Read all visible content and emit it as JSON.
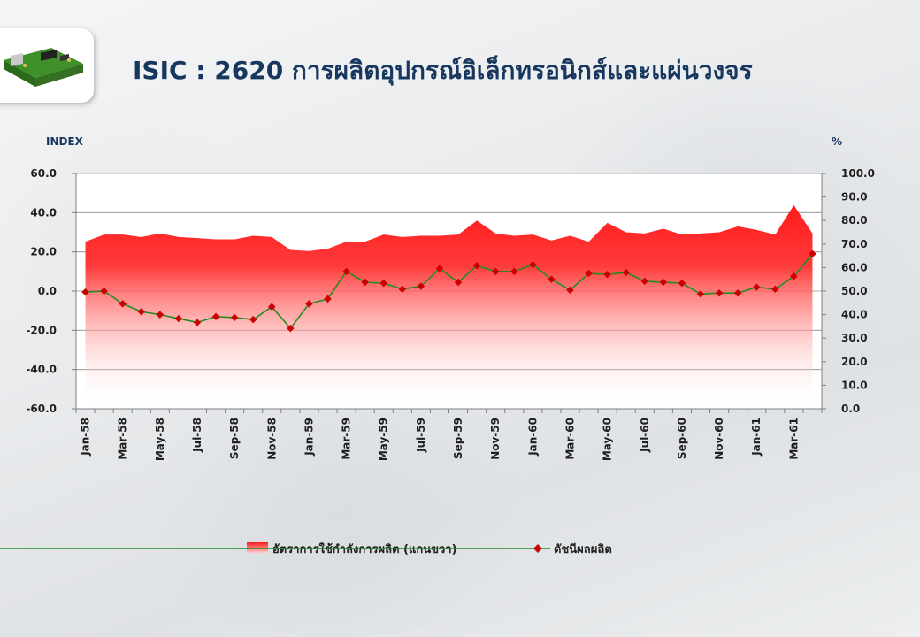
{
  "header": {
    "title": "ISIC : 2620 การผลิตอุปกรณ์อิเล็กทรอนิกส์และแผ่นวงจร",
    "logo_icon": "circuit-board-icon"
  },
  "chart_data": {
    "type": "line",
    "title": "ISIC : 2620 การผลิตอุปกรณ์อิเล็กทรอนิกส์และแผ่นวงจร",
    "ylabel_left": "INDEX",
    "ylabel_right": "%",
    "ylim_left": [
      -60,
      60
    ],
    "ylim_right": [
      0,
      100
    ],
    "yticks_left": [
      "60.0",
      "40.0",
      "20.0",
      "0.0",
      "-20.0",
      "-40.0",
      "-60.0"
    ],
    "yticks_right": [
      "100.0",
      "90.0",
      "80.0",
      "70.0",
      "60.0",
      "50.0",
      "40.0",
      "30.0",
      "20.0",
      "10.0",
      "0.0"
    ],
    "grid": "horizontal",
    "legend_position": "bottom",
    "x": [
      "Jan-58",
      "Feb-58",
      "Mar-58",
      "Apr-58",
      "May-58",
      "Jun-58",
      "Jul-58",
      "Aug-58",
      "Sep-58",
      "Oct-58",
      "Nov-58",
      "Dec-58",
      "Jan-59",
      "Feb-59",
      "Mar-59",
      "Apr-59",
      "May-59",
      "Jun-59",
      "Jul-59",
      "Aug-59",
      "Sep-59",
      "Oct-59",
      "Nov-59",
      "Dec-59",
      "Jan-60",
      "Feb-60",
      "Mar-60",
      "Apr-60",
      "May-60",
      "Jun-60",
      "Jul-60",
      "Aug-60",
      "Sep-60",
      "Oct-60",
      "Nov-60",
      "Dec-60",
      "Jan-61",
      "Feb-61",
      "Mar-61",
      "Apr-61"
    ],
    "xtick_labels": [
      "Jan-58",
      "Mar-58",
      "May-58",
      "Jul-58",
      "Sep-58",
      "Nov-58",
      "Jan-59",
      "Mar-59",
      "May-59",
      "Jul-59",
      "Sep-59",
      "Nov-59",
      "Jan-60",
      "Mar-60",
      "May-60",
      "Jul-60",
      "Sep-60",
      "Nov-60",
      "Jan-61",
      "Mar-61"
    ],
    "series": [
      {
        "name": "อัตราการใช้กำลังการผลิต (แกนขวา)",
        "type": "area",
        "axis": "right",
        "color": "#ff2020",
        "values": [
          71,
          74,
          74,
          73,
          74.5,
          73,
          72.5,
          72,
          72,
          73.5,
          73,
          67.5,
          67,
          68,
          71,
          71,
          74,
          73,
          73.5,
          73.5,
          74,
          80,
          74.5,
          73.5,
          74,
          71.5,
          73.5,
          71,
          79,
          75,
          74.5,
          76.5,
          74,
          74.5,
          75,
          77.5,
          76,
          74,
          86.5,
          74.5
        ]
      },
      {
        "name": "ดัชนีผลผลิต",
        "type": "line",
        "axis": "left",
        "color": "#228b22",
        "marker_color": "#cc0000",
        "values": [
          -0.5,
          0,
          -6.5,
          -10.5,
          -12,
          -14,
          -16,
          -13,
          -13.5,
          -14.5,
          -8,
          -19,
          -6.5,
          -4,
          10,
          4.5,
          4,
          1,
          2.5,
          11.5,
          4.5,
          13,
          10,
          10,
          13.5,
          6,
          0.5,
          9,
          8.5,
          9.5,
          5,
          4.5,
          4,
          -1.5,
          -1,
          -1,
          2,
          1,
          7.5,
          19
        ]
      }
    ]
  }
}
